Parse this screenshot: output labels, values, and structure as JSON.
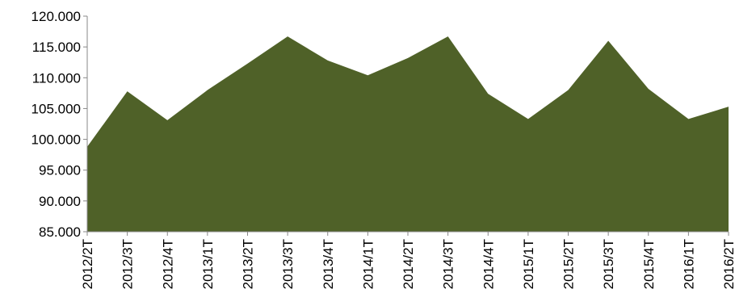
{
  "chart_data": {
    "type": "area",
    "title": "",
    "xlabel": "",
    "ylabel": "",
    "categories": [
      "2012/2T",
      "2012/3T",
      "2012/4T",
      "2013/1T",
      "2013/2T",
      "2013/3T",
      "2013/4T",
      "2014/1T",
      "2014/2T",
      "2014/3T",
      "2014/4T",
      "2015/1T",
      "2015/2T",
      "2015/3T",
      "2015/4T",
      "2016/1T",
      "2016/2T"
    ],
    "series": [
      {
        "values": [
          98800,
          107800,
          103100,
          108000,
          112300,
          116700,
          112800,
          110400,
          113200,
          116700,
          107400,
          103300,
          108000,
          116000,
          108200,
          103300,
          105300
        ]
      }
    ],
    "ylim": [
      85000,
      120000
    ],
    "yticks": [
      85000,
      90000,
      95000,
      100000,
      105000,
      110000,
      115000,
      120000
    ],
    "ytick_labels": [
      "85.000",
      "90.000",
      "95.000",
      "100.000",
      "105.000",
      "110.000",
      "115.000",
      "120.000"
    ],
    "grid": false,
    "legend": "none",
    "colors": {
      "fill": "#4f6128",
      "axis": "#888888"
    }
  }
}
